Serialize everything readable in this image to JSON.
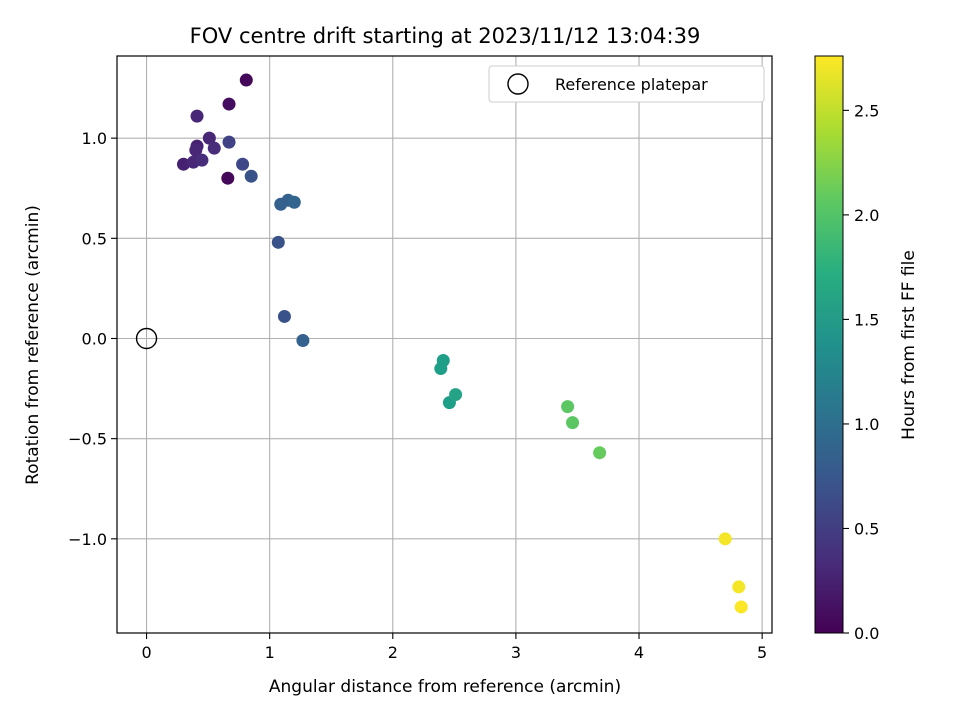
{
  "chart_data": {
    "type": "scatter",
    "title": "FOV centre drift starting at 2023/11/12 13:04:39",
    "xlabel": "Angular distance from reference (arcmin)",
    "ylabel": "Rotation from reference (arcmin)",
    "xlim": [
      -0.24,
      5.08
    ],
    "ylim": [
      -1.47,
      1.41
    ],
    "xticks": [
      0,
      1,
      2,
      3,
      4,
      5
    ],
    "xtick_labels": [
      "0",
      "1",
      "2",
      "3",
      "4",
      "5"
    ],
    "yticks": [
      -1.0,
      -0.5,
      0.0,
      0.5,
      1.0
    ],
    "ytick_labels": [
      "−1.0",
      "−0.5",
      "0.0",
      "0.5",
      "1.0"
    ],
    "grid": true,
    "legend": {
      "location": "upper right",
      "entries": [
        "Reference platepar"
      ]
    },
    "reference_point": {
      "name": "Reference platepar",
      "x": 0.0,
      "y": 0.0
    },
    "colorbar": {
      "label": "Hours from first FF file",
      "colormap": "viridis",
      "range": [
        0.0,
        2.76
      ],
      "ticks": [
        0.0,
        0.5,
        1.0,
        1.5,
        2.0,
        2.5
      ],
      "tick_labels": [
        "0.0",
        "0.5",
        "1.0",
        "1.5",
        "2.0",
        "2.5"
      ]
    },
    "points": [
      {
        "x": 0.81,
        "y": 1.29,
        "hours": 0.05
      },
      {
        "x": 0.67,
        "y": 1.17,
        "hours": 0.1
      },
      {
        "x": 0.66,
        "y": 0.8,
        "hours": 0.05
      },
      {
        "x": 0.41,
        "y": 1.11,
        "hours": 0.3
      },
      {
        "x": 0.51,
        "y": 1.0,
        "hours": 0.3
      },
      {
        "x": 0.41,
        "y": 0.96,
        "hours": 0.25
      },
      {
        "x": 0.4,
        "y": 0.94,
        "hours": 0.3
      },
      {
        "x": 0.55,
        "y": 0.95,
        "hours": 0.35
      },
      {
        "x": 0.3,
        "y": 0.87,
        "hours": 0.25
      },
      {
        "x": 0.38,
        "y": 0.88,
        "hours": 0.3
      },
      {
        "x": 0.45,
        "y": 0.89,
        "hours": 0.35
      },
      {
        "x": 0.67,
        "y": 0.98,
        "hours": 0.55
      },
      {
        "x": 0.78,
        "y": 0.87,
        "hours": 0.6
      },
      {
        "x": 0.85,
        "y": 0.81,
        "hours": 0.7
      },
      {
        "x": 1.09,
        "y": 0.67,
        "hours": 0.85
      },
      {
        "x": 1.15,
        "y": 0.69,
        "hours": 0.85
      },
      {
        "x": 1.2,
        "y": 0.68,
        "hours": 0.9
      },
      {
        "x": 1.07,
        "y": 0.48,
        "hours": 0.7
      },
      {
        "x": 1.12,
        "y": 0.11,
        "hours": 0.7
      },
      {
        "x": 1.27,
        "y": -0.01,
        "hours": 0.85
      },
      {
        "x": 2.41,
        "y": -0.11,
        "hours": 1.55
      },
      {
        "x": 2.39,
        "y": -0.15,
        "hours": 1.55
      },
      {
        "x": 2.46,
        "y": -0.32,
        "hours": 1.55
      },
      {
        "x": 2.51,
        "y": -0.28,
        "hours": 1.6
      },
      {
        "x": 3.42,
        "y": -0.34,
        "hours": 2.05
      },
      {
        "x": 3.46,
        "y": -0.42,
        "hours": 2.05
      },
      {
        "x": 3.68,
        "y": -0.57,
        "hours": 2.1
      },
      {
        "x": 4.7,
        "y": -1.0,
        "hours": 2.72
      },
      {
        "x": 4.81,
        "y": -1.24,
        "hours": 2.72
      },
      {
        "x": 4.83,
        "y": -1.34,
        "hours": 2.75
      }
    ]
  }
}
